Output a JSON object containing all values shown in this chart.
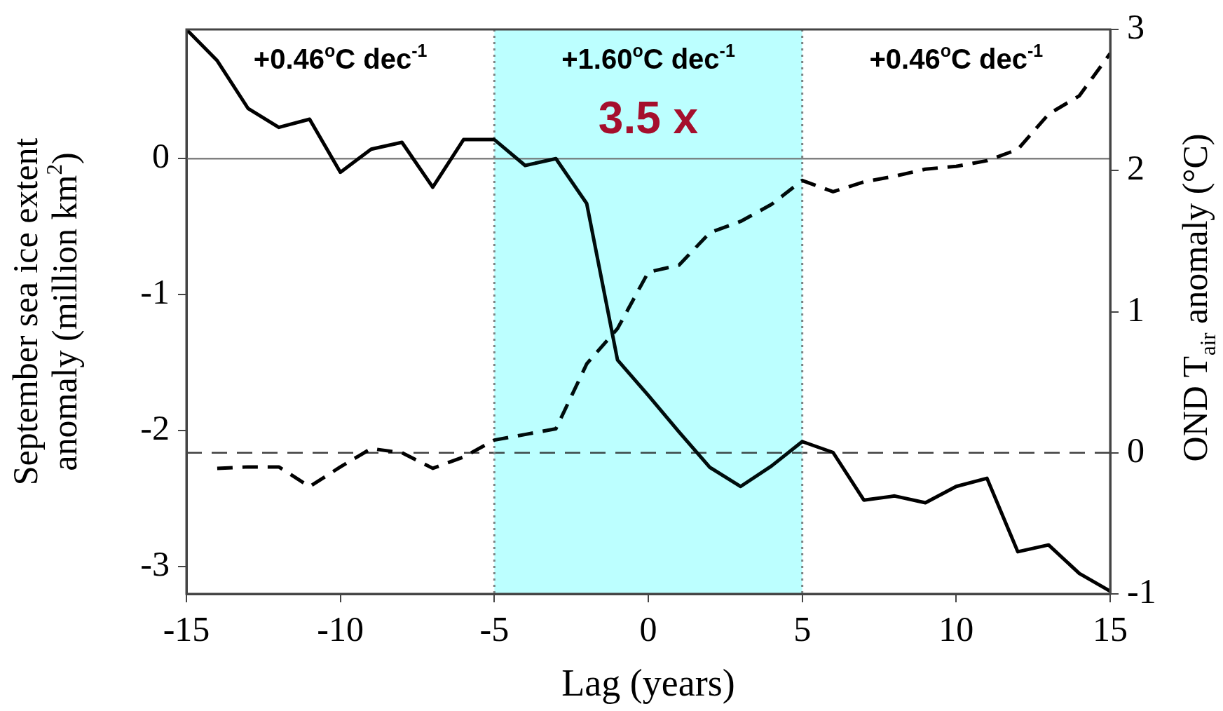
{
  "chart_data": {
    "type": "line",
    "xlabel": "Lag (years)",
    "ylabel": "September sea ice extent\nanomaly (million km$^{2}$)",
    "y2label": "OND T$_{air}$ anomaly (°C)",
    "x": [
      -15,
      -14,
      -13,
      -12,
      -11,
      -10,
      -9,
      -8,
      -7,
      -6,
      -5,
      -4,
      -3,
      -2,
      -1,
      0,
      1,
      2,
      3,
      4,
      5,
      6,
      7,
      8,
      9,
      10,
      11,
      12,
      13,
      14,
      15
    ],
    "series": [
      {
        "color": "#000000",
        "line_style": "solid",
        "values": [
          0.95,
          0.72,
          0.37,
          0.23,
          0.29,
          -0.1,
          0.07,
          0.12,
          -0.21,
          0.14,
          0.14,
          -0.05,
          0.0,
          -0.33,
          -1.48,
          -1.74,
          -2.01,
          -2.27,
          -2.41,
          -2.26,
          -2.08,
          -2.16,
          -2.51,
          -2.48,
          -2.53,
          -2.41,
          -2.35,
          -2.89,
          -2.84,
          -3.05,
          -3.18
        ]
      },
      {
        "color": "#000000",
        "line_style": "dashed",
        "axis": "y2",
        "values": [
          null,
          -0.11,
          -0.1,
          -0.1,
          -0.24,
          -0.1,
          0.03,
          0.0,
          -0.11,
          -0.03,
          0.09,
          0.13,
          0.17,
          0.63,
          0.88,
          1.28,
          1.33,
          1.56,
          1.64,
          1.76,
          1.93,
          1.85,
          1.92,
          1.96,
          2.01,
          2.03,
          2.07,
          2.15,
          2.4,
          2.53,
          2.83
        ]
      }
    ],
    "xlim": [
      -15,
      15
    ],
    "xticks": [
      -15,
      -10,
      -5,
      0,
      5,
      10,
      15
    ],
    "ylim": [
      -3.2,
      0.95
    ],
    "yticks": [
      -3,
      -2,
      -1,
      0
    ],
    "y2lim": [
      -1,
      3
    ],
    "y2ticks": [
      -1,
      0,
      1,
      2,
      3
    ],
    "ref_lines": [
      {
        "axis": "y",
        "value": 0,
        "color": "#808080",
        "line_style": "solid"
      },
      {
        "axis": "y2",
        "value": 0,
        "color": "#404040",
        "line_style": "dashed"
      },
      {
        "axis": "x",
        "value": -5,
        "color": "#808080",
        "line_style": "dotted"
      },
      {
        "axis": "x",
        "value": 5,
        "color": "#808080",
        "line_style": "dotted"
      }
    ],
    "bands": [
      {
        "axis": "x",
        "from": -5,
        "to": 5,
        "color": "#00ffff"
      }
    ],
    "annotations": [
      "+0.46$^{o}$C dec$^{-1}$",
      "+1.60$^{o}$C dec$^{-1}$",
      "+0.46$^{o}$C dec$^{-1}$",
      "3.5 x"
    ],
    "grid": false,
    "legend": false,
    "marker": "none"
  }
}
